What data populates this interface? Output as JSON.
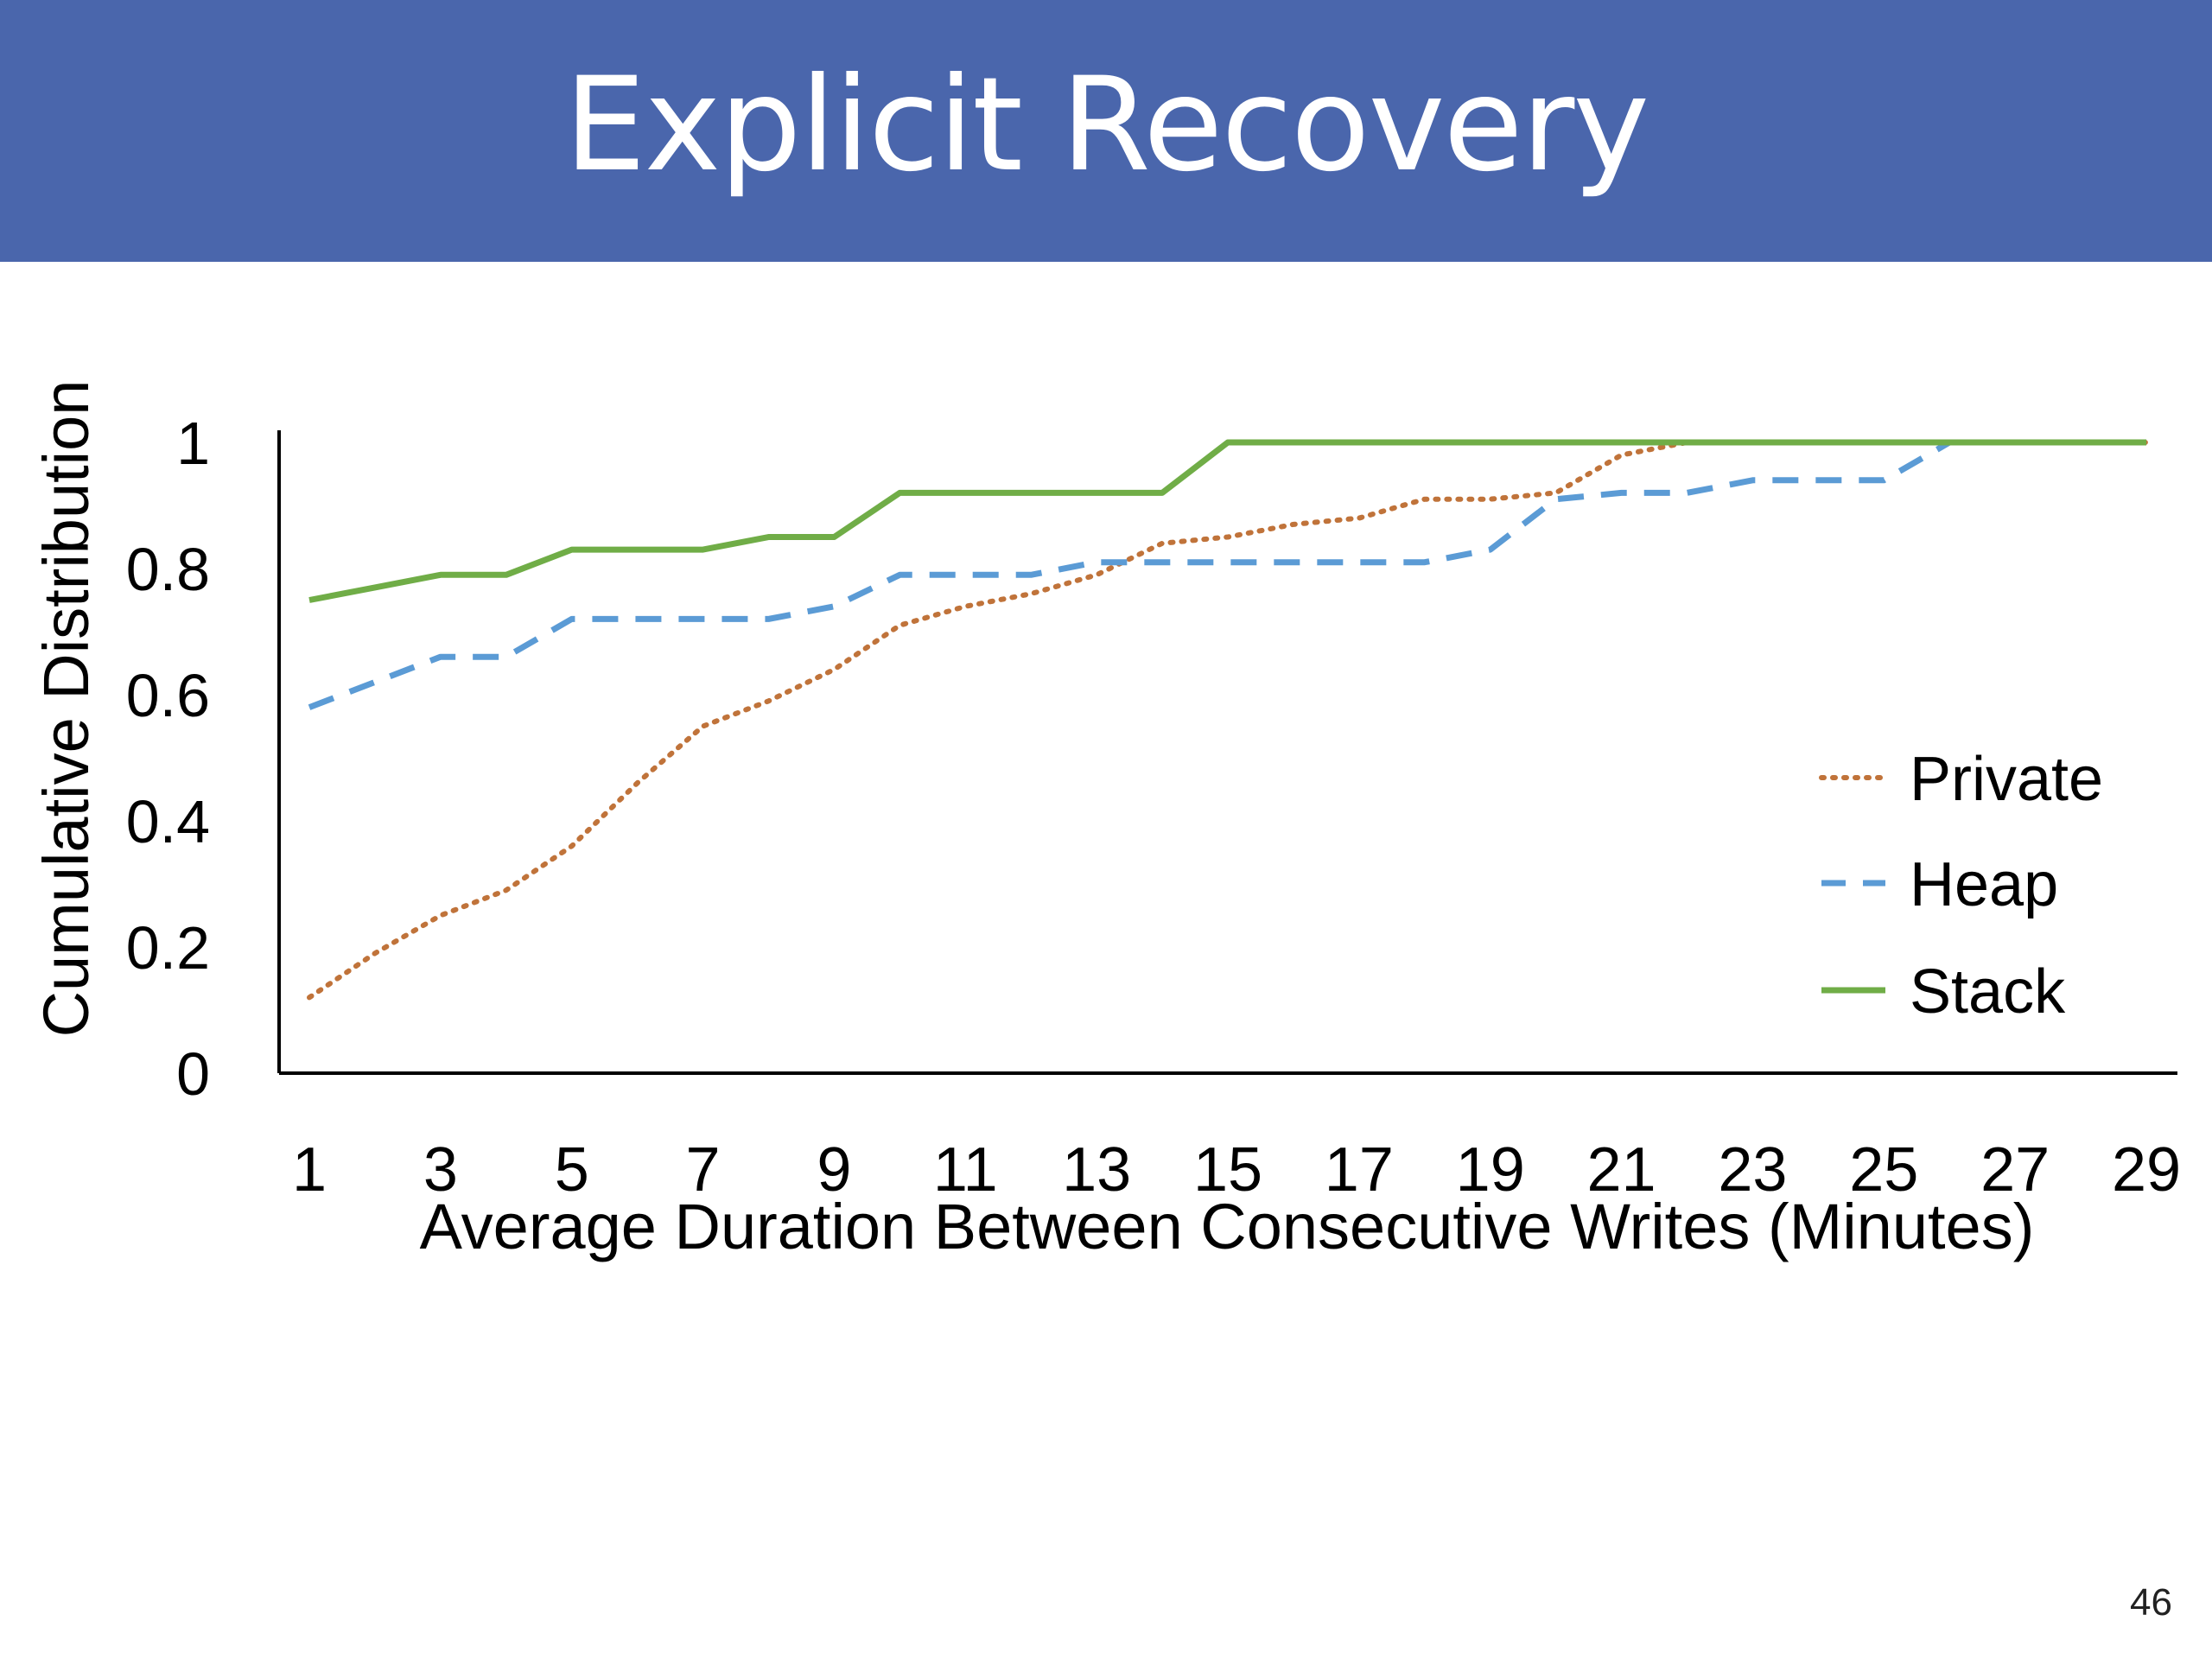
{
  "slide": {
    "title": "Explicit Recovery",
    "page_number": "46"
  },
  "colors": {
    "title_bar": "#4A66AC",
    "private": "#C0733A",
    "heap": "#5B9BD5",
    "stack": "#70AD47"
  },
  "chart_data": {
    "type": "line",
    "title": "",
    "xlabel": "Average Duration Between Consecutive Writes (Minutes)",
    "ylabel": "Cumulative Distribution",
    "x": [
      1,
      2,
      3,
      4,
      5,
      6,
      7,
      8,
      9,
      10,
      11,
      12,
      13,
      14,
      15,
      16,
      17,
      18,
      19,
      20,
      21,
      22,
      23,
      24,
      25,
      26,
      27,
      28,
      29
    ],
    "x_tick_labels": [
      "1",
      "3",
      "5",
      "7",
      "9",
      "11",
      "13",
      "15",
      "17",
      "19",
      "21",
      "23",
      "25",
      "27",
      "29"
    ],
    "y_tick_labels": [
      "0",
      "0.2",
      "0.4",
      "0.6",
      "0.8",
      "1"
    ],
    "ylim": [
      0,
      1
    ],
    "grid": false,
    "legend_position": "right",
    "series": [
      {
        "name": "Private",
        "style": "dotted",
        "values": [
          0.12,
          0.19,
          0.25,
          0.29,
          0.36,
          0.46,
          0.55,
          0.59,
          0.64,
          0.71,
          0.74,
          0.76,
          0.79,
          0.84,
          0.85,
          0.87,
          0.88,
          0.91,
          0.91,
          0.92,
          0.98,
          1.0,
          1.0,
          1.0,
          1.0,
          1.0,
          1.0,
          1.0,
          1.0
        ]
      },
      {
        "name": "Heap",
        "style": "dashed",
        "values": [
          0.58,
          0.62,
          0.66,
          0.66,
          0.72,
          0.72,
          0.72,
          0.72,
          0.74,
          0.79,
          0.79,
          0.79,
          0.81,
          0.81,
          0.81,
          0.81,
          0.81,
          0.81,
          0.83,
          0.91,
          0.92,
          0.92,
          0.94,
          0.94,
          0.94,
          1.0,
          1.0,
          1.0,
          1.0
        ]
      },
      {
        "name": "Stack",
        "style": "solid",
        "values": [
          0.75,
          0.77,
          0.79,
          0.79,
          0.83,
          0.83,
          0.83,
          0.85,
          0.85,
          0.92,
          0.92,
          0.92,
          0.92,
          0.92,
          1.0,
          1.0,
          1.0,
          1.0,
          1.0,
          1.0,
          1.0,
          1.0,
          1.0,
          1.0,
          1.0,
          1.0,
          1.0,
          1.0,
          1.0
        ]
      }
    ]
  }
}
